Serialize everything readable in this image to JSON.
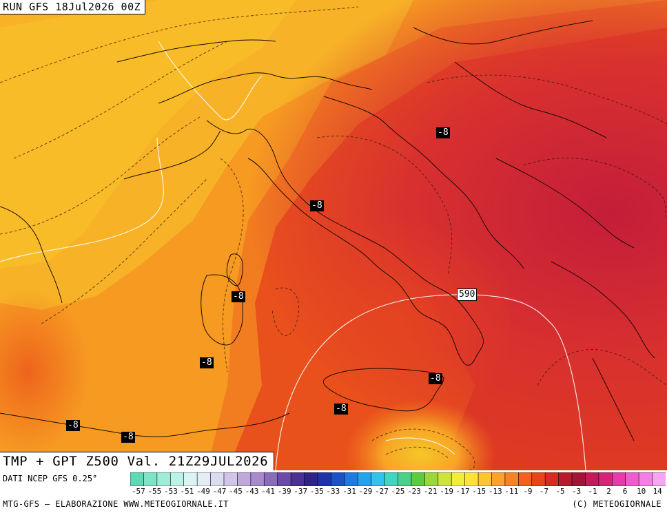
{
  "header": {
    "run": "RUN GFS 18Jul2026 00Z"
  },
  "map": {
    "validity": "TMP + GPT Z500 Val. 21Z29JUL2026",
    "temperature_labels": [
      "-8",
      "-8",
      "-8",
      "-8",
      "-8",
      "-8",
      "-8",
      "-8"
    ],
    "geopotential_label": "590"
  },
  "legend": {
    "source": "DATI NCEP GFS 0.25°",
    "values": [
      "-57",
      "-55",
      "-53",
      "-51",
      "-49",
      "-47",
      "-45",
      "-43",
      "-41",
      "-39",
      "-37",
      "-35",
      "-33",
      "-31",
      "-29",
      "-27",
      "-25",
      "-23",
      "-21",
      "-19",
      "-17",
      "-15",
      "-13",
      "-11",
      "-9",
      "-7",
      "-5",
      "-3",
      "-1",
      "2",
      "6",
      "10",
      "14"
    ],
    "colors": [
      "#5fd9b4",
      "#7fe3c4",
      "#9fecd6",
      "#bdf2e6",
      "#d8f4f4",
      "#e4ecf6",
      "#d9ddef",
      "#d0c5e6",
      "#c0a8db",
      "#a98acc",
      "#8a6cbc",
      "#6c4ba8",
      "#4b3190",
      "#2e2488",
      "#1f33a8",
      "#1c52c8",
      "#1f79de",
      "#22a3ea",
      "#2fc4e8",
      "#3fd5c0",
      "#4bd08a",
      "#5ccb3e",
      "#9ad83a",
      "#cfe43a",
      "#f2ec3a",
      "#fde23a",
      "#fdc52f",
      "#fba22a",
      "#f88324",
      "#f2621d",
      "#e8431a",
      "#d62a22",
      "#b8192e",
      "#a31538",
      "#c21a5a",
      "#d8237a",
      "#e83aa8",
      "#f05ccf",
      "#f37fe6",
      "#f6a6f0"
    ],
    "footer_left": "MTG-GFS – ELABORAZIONE WWW.METEOGIORNALE.IT",
    "footer_right": "(C) METEOGIORNALE"
  }
}
